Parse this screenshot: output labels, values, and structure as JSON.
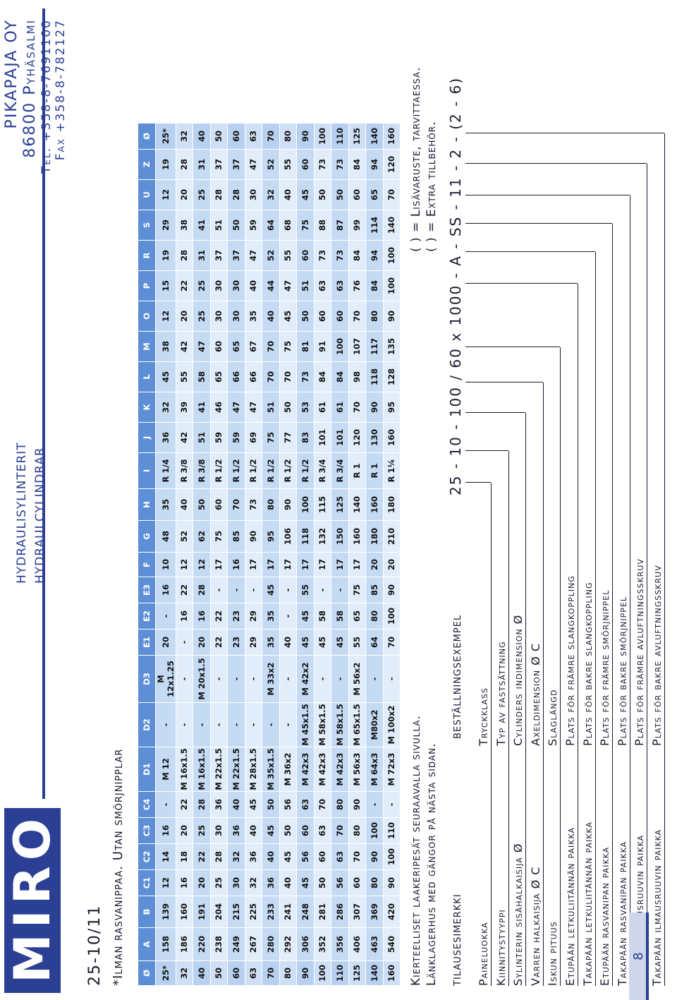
{
  "header": {
    "logo": "MIRO",
    "title_fi": "hydraulisylinterit",
    "title_sv": "hydraulcylindrar",
    "company": "PIKAPAJA OY",
    "city": "86800 Pyhäsalmi",
    "tel": "Tel. +358-8-7691100",
    "fax": "Fax +358-8-782127"
  },
  "model": "25-10/11",
  "note": "*Ilman rasvanippaa. Utan smörjnipplar",
  "table": {
    "headers": [
      "Ø",
      "A",
      "B",
      "C1",
      "C2",
      "C3",
      "C4",
      "D1",
      "D2",
      "D3",
      "E1",
      "E2",
      "E3",
      "F",
      "G",
      "H",
      "I",
      "J",
      "K",
      "L",
      "M",
      "O",
      "P",
      "R",
      "S",
      "U",
      "Z",
      "Ø"
    ],
    "rows": [
      [
        "25*",
        "158",
        "139",
        "12",
        "14",
        "16",
        "-",
        "M 12",
        "-",
        "M 12x1.25",
        "20",
        "-",
        "16",
        "10",
        "48",
        "35",
        "R 1/4",
        "36",
        "32",
        "45",
        "38",
        "12",
        "15",
        "19",
        "29",
        "12",
        "19",
        "25*"
      ],
      [
        "32",
        "186",
        "160",
        "16",
        "18",
        "20",
        "22",
        "M 16x1.5",
        "-",
        "-",
        "-",
        "16",
        "22",
        "12",
        "52",
        "40",
        "R 3/8",
        "42",
        "39",
        "55",
        "42",
        "20",
        "22",
        "28",
        "38",
        "20",
        "28",
        "32"
      ],
      [
        "40",
        "220",
        "191",
        "20",
        "22",
        "25",
        "28",
        "M 16x1.5",
        "-",
        "M 20x1.5",
        "20",
        "16",
        "28",
        "12",
        "62",
        "50",
        "R 3/8",
        "51",
        "41",
        "58",
        "47",
        "25",
        "25",
        "31",
        "41",
        "25",
        "31",
        "40"
      ],
      [
        "50",
        "238",
        "204",
        "25",
        "28",
        "30",
        "36",
        "M 22x1.5",
        "-",
        "-",
        "22",
        "22",
        "-",
        "17",
        "75",
        "60",
        "R 1/2",
        "59",
        "46",
        "65",
        "60",
        "30",
        "30",
        "37",
        "51",
        "28",
        "37",
        "50"
      ],
      [
        "60",
        "249",
        "215",
        "30",
        "32",
        "36",
        "40",
        "M 22x1.5",
        "-",
        "-",
        "23",
        "23",
        "-",
        "16",
        "85",
        "70",
        "R 1/2",
        "59",
        "47",
        "66",
        "65",
        "30",
        "30",
        "37",
        "50",
        "28",
        "37",
        "60"
      ],
      [
        "63",
        "267",
        "225",
        "32",
        "36",
        "40",
        "45",
        "M 28x1.5",
        "-",
        "-",
        "29",
        "29",
        "-",
        "17",
        "90",
        "73",
        "R 1/2",
        "69",
        "47",
        "66",
        "67",
        "35",
        "40",
        "47",
        "59",
        "30",
        "47",
        "63"
      ],
      [
        "70",
        "280",
        "233",
        "36",
        "40",
        "45",
        "50",
        "M 35x1.5",
        "-",
        "M 33x2",
        "35",
        "35",
        "45",
        "17",
        "95",
        "80",
        "R 1/2",
        "75",
        "51",
        "70",
        "70",
        "40",
        "44",
        "52",
        "64",
        "32",
        "52",
        "70"
      ],
      [
        "80",
        "292",
        "241",
        "40",
        "45",
        "50",
        "56",
        "M 36x2",
        "-",
        "-",
        "40",
        "-",
        "-",
        "17",
        "106",
        "90",
        "R 1/2",
        "77",
        "50",
        "70",
        "75",
        "45",
        "47",
        "55",
        "68",
        "40",
        "55",
        "80"
      ],
      [
        "90",
        "306",
        "248",
        "45",
        "56",
        "60",
        "63",
        "M 42x3",
        "M 45x1.5",
        "M 42x2",
        "45",
        "45",
        "55",
        "17",
        "118",
        "100",
        "R 1/2",
        "83",
        "53",
        "73",
        "81",
        "50",
        "51",
        "60",
        "75",
        "45",
        "60",
        "90"
      ],
      [
        "100",
        "352",
        "281",
        "50",
        "60",
        "63",
        "70",
        "M 42x3",
        "M 58x1.5",
        "-",
        "45",
        "58",
        "-",
        "17",
        "132",
        "115",
        "R 3/4",
        "101",
        "61",
        "84",
        "91",
        "60",
        "63",
        "73",
        "88",
        "50",
        "73",
        "100"
      ],
      [
        "110",
        "356",
        "286",
        "56",
        "63",
        "70",
        "80",
        "M 42x3",
        "M 58x1.5",
        "-",
        "45",
        "58",
        "-",
        "17",
        "150",
        "125",
        "R 3/4",
        "101",
        "61",
        "84",
        "100",
        "60",
        "63",
        "73",
        "87",
        "50",
        "73",
        "110"
      ],
      [
        "125",
        "406",
        "307",
        "60",
        "70",
        "80",
        "90",
        "M 56x3",
        "M 65x1.5",
        "M 56x2",
        "55",
        "65",
        "75",
        "17",
        "160",
        "140",
        "R 1",
        "120",
        "70",
        "98",
        "107",
        "70",
        "76",
        "84",
        "99",
        "60",
        "84",
        "125"
      ],
      [
        "140",
        "463",
        "369",
        "80",
        "90",
        "100",
        "-",
        "M 64x3",
        "M80x2",
        "-",
        "64",
        "80",
        "85",
        "20",
        "180",
        "160",
        "R 1",
        "130",
        "90",
        "118",
        "117",
        "80",
        "84",
        "94",
        "114",
        "65",
        "94",
        "140"
      ],
      [
        "160",
        "540",
        "420",
        "90",
        "100",
        "110",
        "-",
        "M 72x3",
        "M 100x2",
        "-",
        "70",
        "100",
        "90",
        "20",
        "210",
        "180",
        "R 1¼",
        "160",
        "95",
        "128",
        "135",
        "90",
        "100",
        "100",
        "140",
        "70",
        "120",
        "160"
      ]
    ]
  },
  "footnotes": {
    "fi": "Kierteelliset laakeripesät seuraavalla sivulla.",
    "sv": "Länklagerhus med gängor på nästa sidan.",
    "paren_fi": "( ) = Lisävaruste, tarvittaessa.",
    "paren_sv": "( ) = Extra tillbehör."
  },
  "order": {
    "heading_fi": "tilausesimerkki",
    "heading_sv": "beställningsexempel",
    "code": "25 - 10 - 100 / 60 x 1000 - A - SS - 11 - 2 - (2 - 6)",
    "keys": [
      {
        "fi": "Paineluokka",
        "sv": "Tryckklass"
      },
      {
        "fi": "Kiinnitystyyppi",
        "sv": "Typ av fastsättning"
      },
      {
        "fi": "Sylinterin sisähalkaisija Ø",
        "sv": "Cylinders indimension Ø"
      },
      {
        "fi": "Varren halkaisija Ø C",
        "sv": "Axeldimension Ø C"
      },
      {
        "fi": "Iskun pituus",
        "sv": "Slaglängd"
      },
      {
        "fi": "Etupään letkuliitännän paikka",
        "sv": "Plats för främre slangkoppling"
      },
      {
        "fi": "Takapään letkuliitännän paikka",
        "sv": "Plats för bakre slangkoppling"
      },
      {
        "fi": "Etupään rasvanipan paikka",
        "sv": "Plats för främre smörjnippel"
      },
      {
        "fi": "Takapään rasvanipan paikka",
        "sv": "Plats för bakre smörjnippel"
      },
      {
        "fi": "Etupään ilmausruuvin paikka",
        "sv": "Plats för främre avluftningsskruv"
      },
      {
        "fi": "Takapään ilmausruuvin paikka",
        "sv": "Plats för bakre avluftningsskruv"
      }
    ]
  },
  "page_number": "8",
  "colors": {
    "brand": "#2b3f95",
    "table_header": "#5e8fd6",
    "table_row": "#c5dbf4",
    "table_row_alt": "#e1edfa"
  }
}
